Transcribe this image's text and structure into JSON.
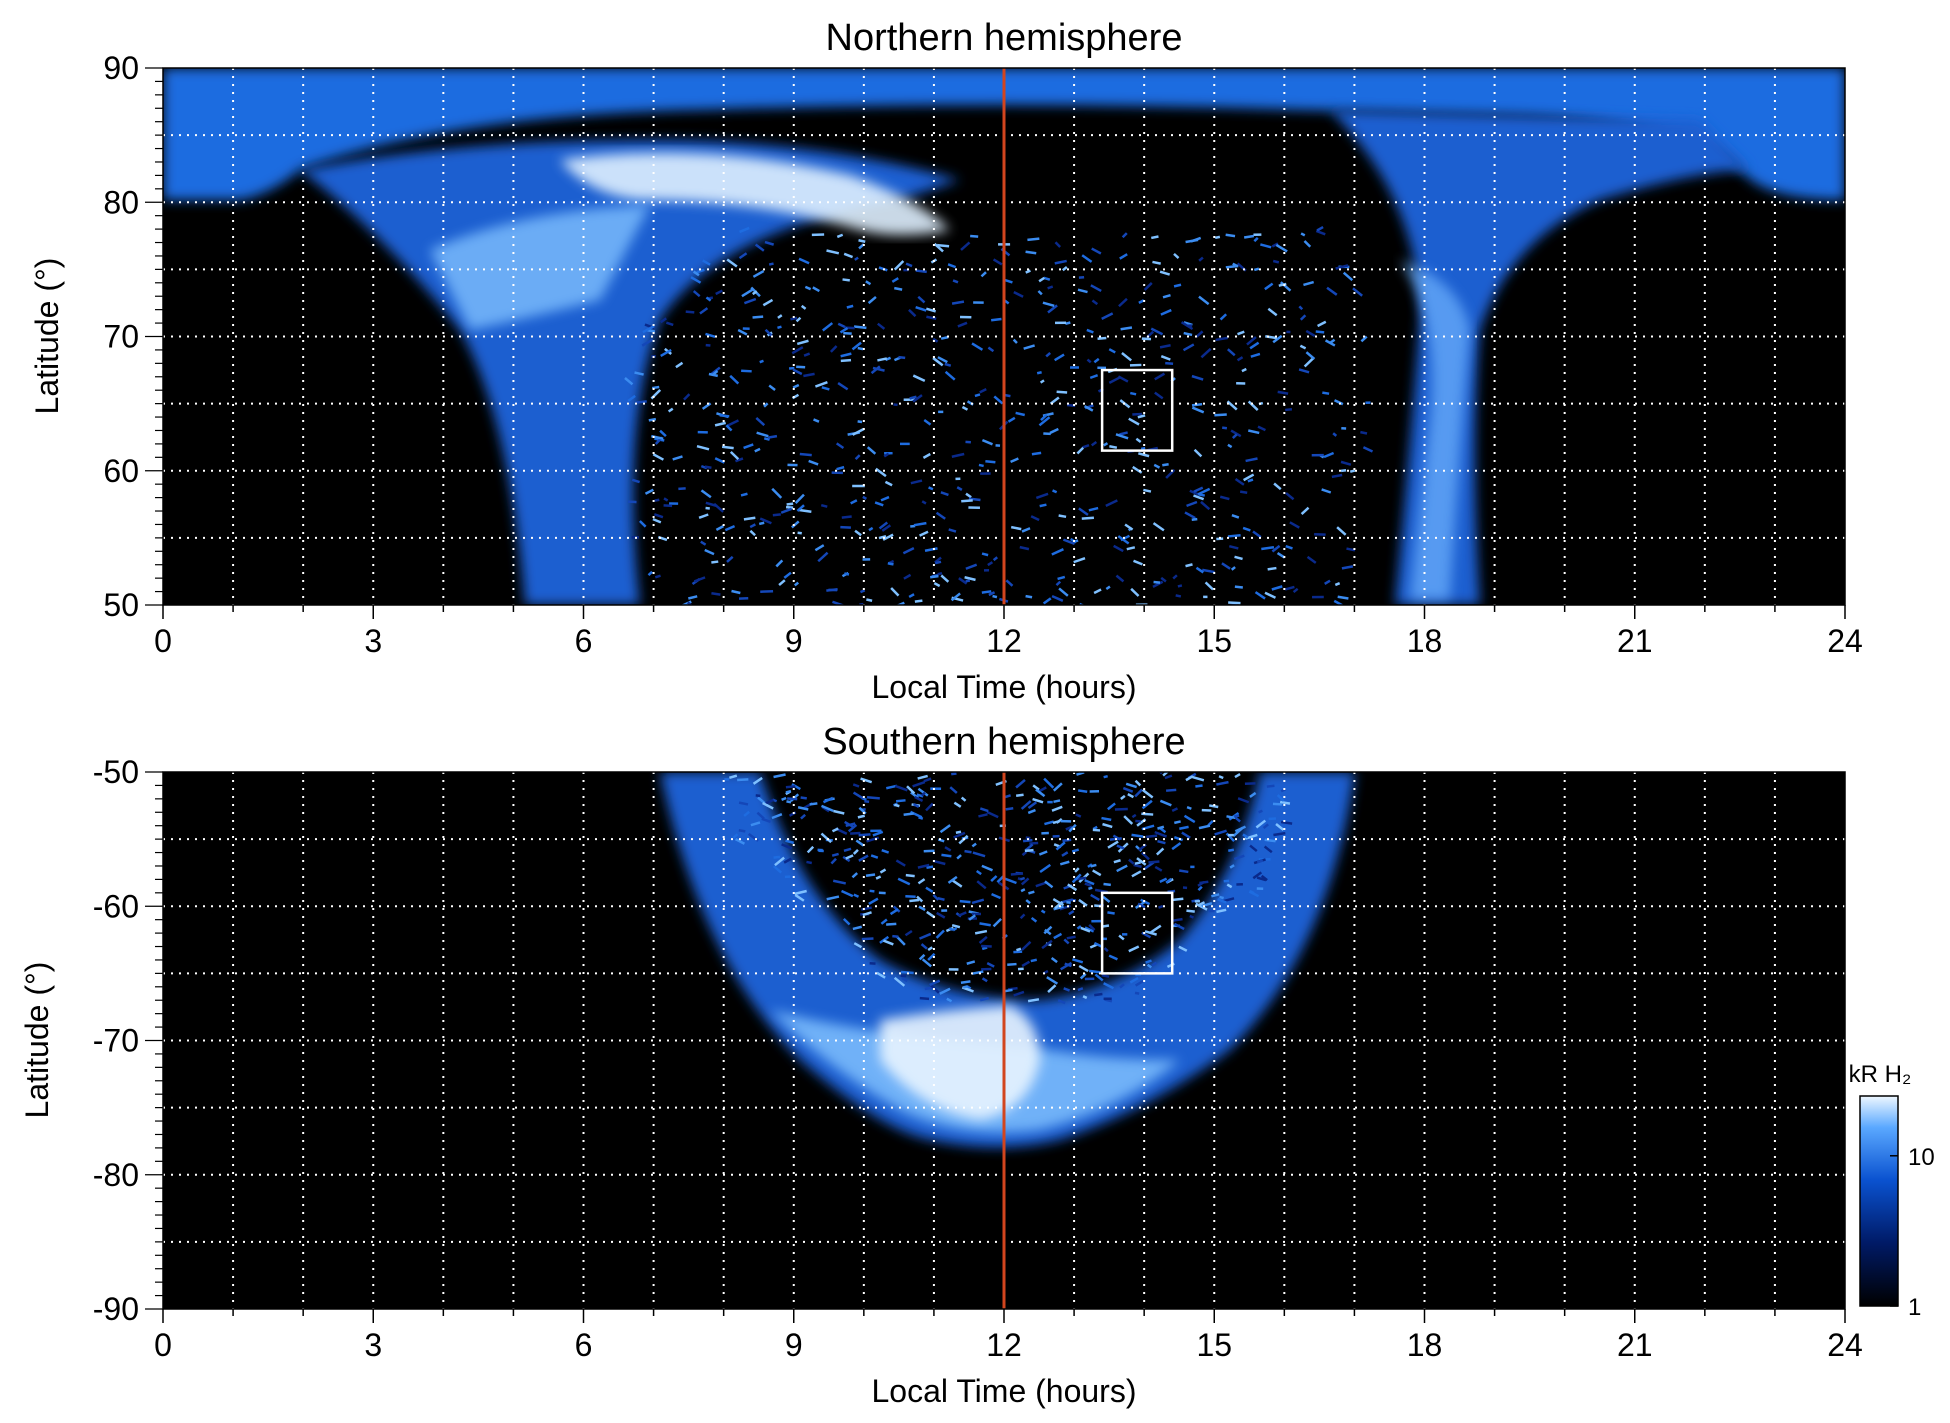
{
  "colors": {
    "background": "#000000",
    "aurora_dim": "#0a2a8c",
    "aurora_mid": "#1e6ce0",
    "aurora_bright": "#7fc0ff",
    "aurora_peak": "#e8f4ff",
    "noon_line": "#d2451e",
    "grid": "#ffffff",
    "box": "#ffffff"
  },
  "chart_data": [
    {
      "type": "heatmap",
      "title": "Northern hemisphere",
      "xlabel": "Local Time (hours)",
      "ylabel": "Latitude (°)",
      "xlim": [
        0,
        24
      ],
      "ylim": [
        50,
        90
      ],
      "x_ticks": [
        "0",
        "3",
        "6",
        "9",
        "12",
        "15",
        "18",
        "21",
        "24"
      ],
      "y_ticks": [
        "50",
        "60",
        "70",
        "80",
        "90"
      ],
      "grid": true,
      "noon_line_x": 12,
      "highlight_box": {
        "x": [
          13.4,
          14.4
        ],
        "y": [
          61.5,
          67.5
        ]
      }
    },
    {
      "type": "heatmap",
      "title": "Southern hemisphere",
      "xlabel": "Local Time (hours)",
      "ylabel": "Latitude (°)",
      "xlim": [
        0,
        24
      ],
      "ylim": [
        -90,
        -50
      ],
      "x_ticks": [
        "0",
        "3",
        "6",
        "9",
        "12",
        "15",
        "18",
        "21",
        "24"
      ],
      "y_ticks": [
        "-90",
        "-80",
        "-70",
        "-60",
        "-50"
      ],
      "grid": true,
      "noon_line_x": 12,
      "highlight_box": {
        "x": [
          13.4,
          14.4
        ],
        "y": [
          -65,
          -59
        ]
      }
    }
  ],
  "colorbar": {
    "label": "kR H₂",
    "scale": "log",
    "ticks": [
      "1",
      "10"
    ],
    "range": [
      1,
      25
    ]
  }
}
